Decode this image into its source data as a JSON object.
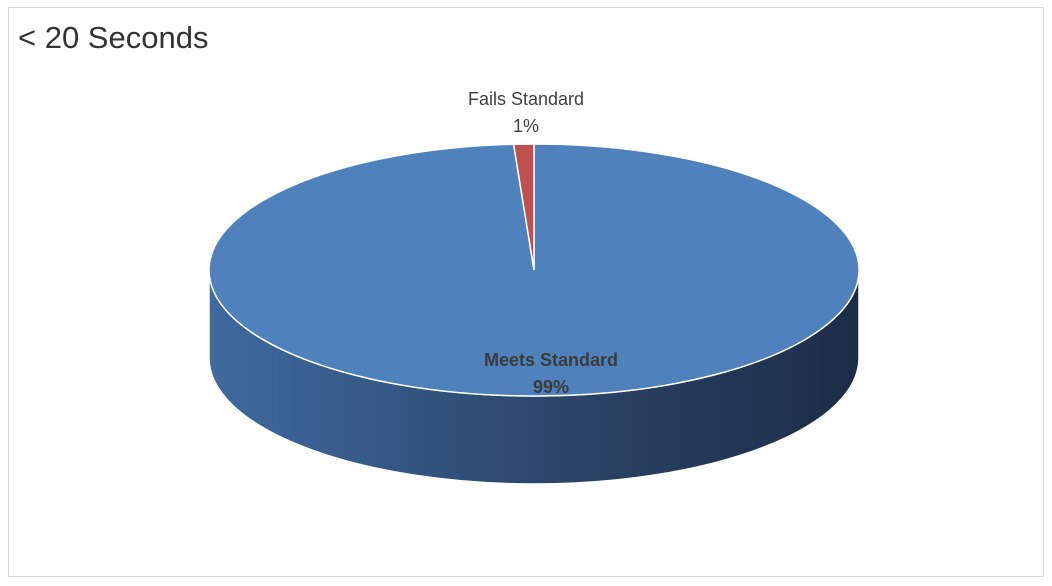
{
  "chart_data": {
    "type": "pie",
    "title": "< 20 Seconds",
    "categories": [
      "Meets Standard",
      "Fails Standard"
    ],
    "values": [
      99,
      1
    ],
    "labels": [
      {
        "name": "Meets Standard",
        "value": "99%"
      },
      {
        "name": "Fails Standard",
        "value": "1%"
      }
    ],
    "colors": {
      "meets_top": "#4f81bd",
      "meets_side_light": "#3f6aa0",
      "meets_side_dark": "#1c2c47",
      "fails_top": "#c0504d",
      "label_meets": "#3b3b3b",
      "label_fails": "#404040"
    },
    "style": "3d"
  }
}
